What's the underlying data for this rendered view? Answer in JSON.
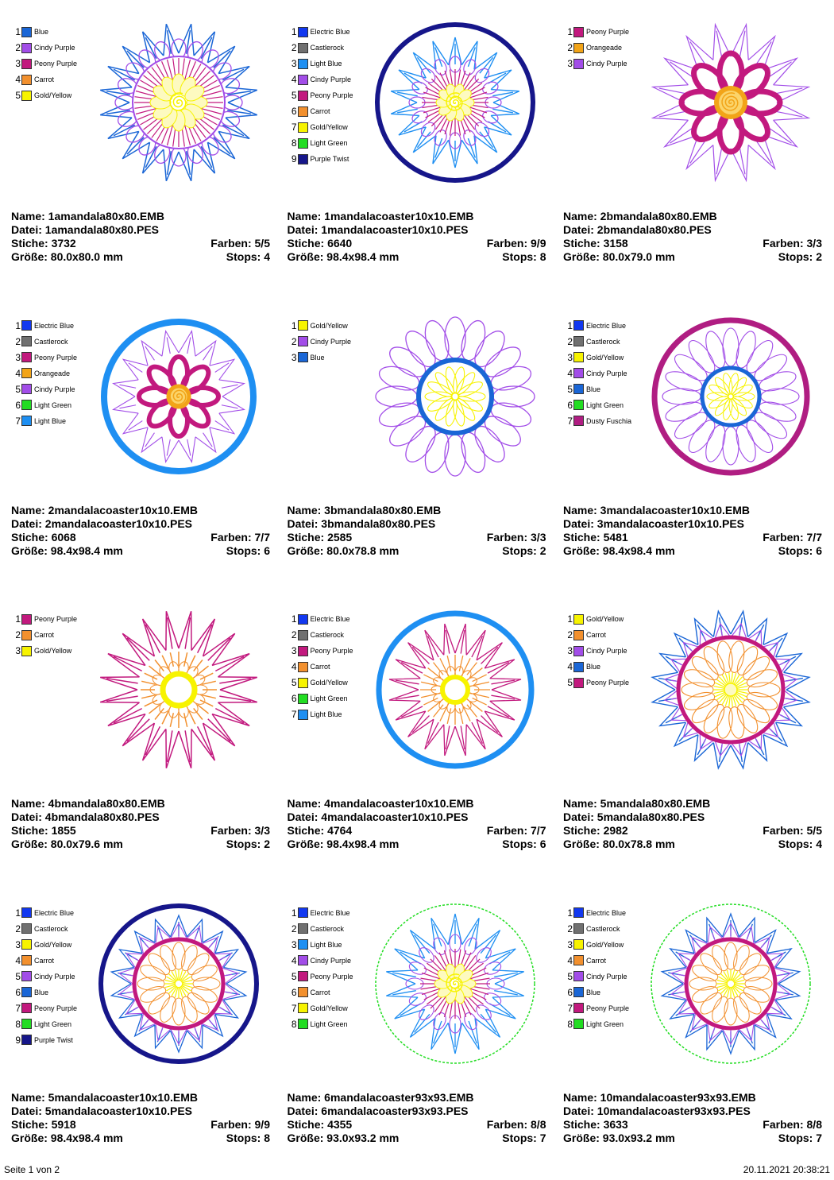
{
  "labels": {
    "name": "Name: ",
    "datei": "Datei: ",
    "stiche": "Stiche: ",
    "farben": "Farben: ",
    "groesse": "Größe: ",
    "stops": "Stops: "
  },
  "colors": {
    "Blue": "#1a66d6",
    "Electric Blue": "#1238f0",
    "Cindy Purple": "#a24de8",
    "Peony Purple": "#c2197e",
    "Carrot": "#f2902e",
    "Gold/Yellow": "#f7f300",
    "Castlerock": "#707070",
    "Light Blue": "#1e8ff2",
    "Purple Twist": "#16168a",
    "Orangeade": "#f2a418",
    "Light Green": "#22dd22",
    "Dusty Fuschia": "#b01d82"
  },
  "designs": [
    {
      "name": "1amandala80x80.EMB",
      "file": "1amandala80x80.PES",
      "stitches": "3732",
      "colors_count": "5/5",
      "size": "80.0x80.0 mm",
      "stops": "4",
      "thread_list": [
        "Blue",
        "Cindy Purple",
        "Peony Purple",
        "Carrot",
        "Gold/Yellow"
      ]
    },
    {
      "name": "1mandalacoaster10x10.EMB",
      "file": "1mandalacoaster10x10.PES",
      "stitches": "6640",
      "colors_count": "9/9",
      "size": "98.4x98.4 mm",
      "stops": "8",
      "thread_list": [
        "Electric Blue",
        "Castlerock",
        "Light Blue",
        "Cindy Purple",
        "Peony Purple",
        "Carrot",
        "Gold/Yellow",
        "Light Green",
        "Purple Twist"
      ]
    },
    {
      "name": "2bmandala80x80.EMB",
      "file": "2bmandala80x80.PES",
      "stitches": "3158",
      "colors_count": "3/3",
      "size": "80.0x79.0 mm",
      "stops": "2",
      "thread_list": [
        "Peony Purple",
        "Orangeade",
        "Cindy Purple"
      ]
    },
    {
      "name": "2mandalacoaster10x10.EMB",
      "file": "2mandalacoaster10x10.PES",
      "stitches": "6068",
      "colors_count": "7/7",
      "size": "98.4x98.4 mm",
      "stops": "6",
      "thread_list": [
        "Electric Blue",
        "Castlerock",
        "Peony Purple",
        "Orangeade",
        "Cindy Purple",
        "Light Green",
        "Light Blue"
      ]
    },
    {
      "name": "3bmandala80x80.EMB",
      "file": "3bmandala80x80.PES",
      "stitches": "2585",
      "colors_count": "3/3",
      "size": "80.0x78.8 mm",
      "stops": "2",
      "thread_list": [
        "Gold/Yellow",
        "Cindy Purple",
        "Blue"
      ]
    },
    {
      "name": "3mandalacoaster10x10.EMB",
      "file": "3mandalacoaster10x10.PES",
      "stitches": "5481",
      "colors_count": "7/7",
      "size": "98.4x98.4 mm",
      "stops": "6",
      "thread_list": [
        "Electric Blue",
        "Castlerock",
        "Gold/Yellow",
        "Cindy Purple",
        "Blue",
        "Light Green",
        "Dusty Fuschia"
      ]
    },
    {
      "name": "4bmandala80x80.EMB",
      "file": "4bmandala80x80.PES",
      "stitches": "1855",
      "colors_count": "3/3",
      "size": "80.0x79.6 mm",
      "stops": "2",
      "thread_list": [
        "Peony Purple",
        "Carrot",
        "Gold/Yellow"
      ]
    },
    {
      "name": "4mandalacoaster10x10.EMB",
      "file": "4mandalacoaster10x10.PES",
      "stitches": "4764",
      "colors_count": "7/7",
      "size": "98.4x98.4 mm",
      "stops": "6",
      "thread_list": [
        "Electric Blue",
        "Castlerock",
        "Peony Purple",
        "Carrot",
        "Gold/Yellow",
        "Light Green",
        "Light Blue"
      ]
    },
    {
      "name": "5mandala80x80.EMB",
      "file": "5mandala80x80.PES",
      "stitches": "2982",
      "colors_count": "5/5",
      "size": "80.0x78.8 mm",
      "stops": "4",
      "thread_list": [
        "Gold/Yellow",
        "Carrot",
        "Cindy Purple",
        "Blue",
        "Peony Purple"
      ]
    },
    {
      "name": "5mandalacoaster10x10.EMB",
      "file": "5mandalacoaster10x10.PES",
      "stitches": "5918",
      "colors_count": "9/9",
      "size": "98.4x98.4 mm",
      "stops": "8",
      "thread_list": [
        "Electric Blue",
        "Castlerock",
        "Gold/Yellow",
        "Carrot",
        "Cindy Purple",
        "Blue",
        "Peony Purple",
        "Light Green",
        "Purple Twist"
      ]
    },
    {
      "name": "6mandalacoaster93x93.EMB",
      "file": "6mandalacoaster93x93.PES",
      "stitches": "4355",
      "colors_count": "8/8",
      "size": "93.0x93.2 mm",
      "stops": "7",
      "thread_list": [
        "Electric Blue",
        "Castlerock",
        "Light Blue",
        "Cindy Purple",
        "Peony Purple",
        "Carrot",
        "Gold/Yellow",
        "Light Green"
      ]
    },
    {
      "name": "10mandalacoaster93x93.EMB",
      "file": "10mandalacoaster93x93.PES",
      "stitches": "3633",
      "colors_count": "8/8",
      "size": "93.0x93.2 mm",
      "stops": "7",
      "thread_list": [
        "Electric Blue",
        "Castlerock",
        "Gold/Yellow",
        "Carrot",
        "Cindy Purple",
        "Blue",
        "Peony Purple",
        "Light Green"
      ]
    }
  ],
  "footer": {
    "page": "Seite 1 von 2",
    "timestamp": "20.11.2021 20:38:21"
  }
}
